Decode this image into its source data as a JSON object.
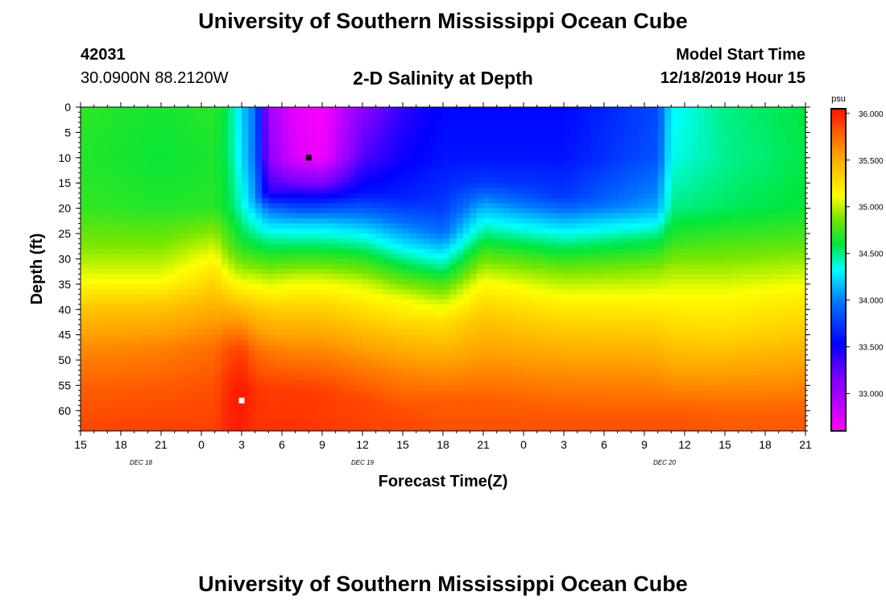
{
  "header": {
    "title": "University of Southern Mississippi Ocean Cube",
    "station_id": "42031",
    "location": "30.0900N 88.2120W",
    "plot_title": "2-D Salinity at Depth",
    "model_start_label": "Model Start Time",
    "model_start_value": "12/18/2019 Hour 15"
  },
  "footer": {
    "title": "University of Southern Mississippi Ocean Cube"
  },
  "chart_data": {
    "type": "heatmap",
    "title": "2-D Salinity at Depth",
    "xlabel": "Forecast Time(Z)",
    "ylabel": "Depth (ft)",
    "x_tick_labels": [
      "15",
      "18",
      "21",
      "0",
      "3",
      "6",
      "9",
      "12",
      "15",
      "18",
      "21",
      "0",
      "3",
      "6",
      "9",
      "12",
      "15",
      "18",
      "21"
    ],
    "x_hours_range": [
      0,
      54
    ],
    "date_labels": [
      {
        "text": "DEC 18",
        "hour": 4.5
      },
      {
        "text": "DEC 19",
        "hour": 21
      },
      {
        "text": "DEC 20",
        "hour": 43.5
      }
    ],
    "ylim": [
      0,
      64
    ],
    "y_ticks": [
      0,
      5,
      10,
      15,
      20,
      25,
      30,
      35,
      40,
      45,
      50,
      55,
      60
    ],
    "colorbar": {
      "unit": "psu",
      "range": [
        32.6,
        36.05
      ],
      "ticks": [
        33.0,
        33.5,
        34.0,
        34.5,
        35.0,
        35.5,
        36.0
      ],
      "tick_labels": [
        "33.000",
        "33.500",
        "34.000",
        "34.500",
        "35.000",
        "35.500",
        "36.000"
      ]
    },
    "markers": [
      {
        "label": "min",
        "hour": 17,
        "depth": 10,
        "color": "#000000"
      },
      {
        "label": "max",
        "hour": 12,
        "depth": 58,
        "color": "#ffffff"
      }
    ],
    "columns": [
      {
        "hour": 0,
        "profile": [
          [
            0,
            34.7
          ],
          [
            10,
            34.68
          ],
          [
            20,
            34.72
          ],
          [
            28,
            34.9
          ],
          [
            34,
            35.1
          ],
          [
            40,
            35.4
          ],
          [
            48,
            35.65
          ],
          [
            56,
            35.8
          ],
          [
            64,
            35.88
          ]
        ]
      },
      {
        "hour": 6,
        "profile": [
          [
            0,
            34.65
          ],
          [
            10,
            34.62
          ],
          [
            20,
            34.68
          ],
          [
            28,
            34.9
          ],
          [
            34,
            35.1
          ],
          [
            40,
            35.42
          ],
          [
            48,
            35.68
          ],
          [
            56,
            35.82
          ],
          [
            64,
            35.9
          ]
        ]
      },
      {
        "hour": 10,
        "profile": [
          [
            0,
            34.7
          ],
          [
            10,
            34.66
          ],
          [
            20,
            34.7
          ],
          [
            28,
            35.05
          ],
          [
            34,
            35.3
          ],
          [
            40,
            35.5
          ],
          [
            48,
            35.75
          ],
          [
            56,
            35.85
          ],
          [
            64,
            35.9
          ]
        ]
      },
      {
        "hour": 11,
        "profile": [
          [
            0,
            34.55
          ],
          [
            10,
            34.55
          ],
          [
            20,
            34.6
          ],
          [
            28,
            34.85
          ],
          [
            34,
            35.15
          ],
          [
            40,
            35.5
          ],
          [
            48,
            35.85
          ],
          [
            56,
            35.98
          ],
          [
            64,
            36.0
          ]
        ]
      },
      {
        "hour": 12,
        "profile": [
          [
            0,
            34.2
          ],
          [
            10,
            34.25
          ],
          [
            20,
            34.4
          ],
          [
            28,
            34.7
          ],
          [
            34,
            35.05
          ],
          [
            40,
            35.45
          ],
          [
            48,
            35.9
          ],
          [
            56,
            36.05
          ],
          [
            64,
            36.02
          ]
        ]
      },
      {
        "hour": 13,
        "profile": [
          [
            0,
            33.95
          ],
          [
            10,
            33.95
          ],
          [
            18,
            34.05
          ],
          [
            22,
            34.3
          ],
          [
            28,
            34.65
          ],
          [
            34,
            35.05
          ],
          [
            40,
            35.4
          ],
          [
            48,
            35.75
          ],
          [
            56,
            35.95
          ],
          [
            64,
            35.95
          ]
        ]
      },
      {
        "hour": 14,
        "profile": [
          [
            0,
            33.0
          ],
          [
            10,
            33.1
          ],
          [
            17,
            33.4
          ],
          [
            20,
            33.95
          ],
          [
            24,
            34.3
          ],
          [
            28,
            34.6
          ],
          [
            34,
            35.0
          ],
          [
            40,
            35.35
          ],
          [
            48,
            35.7
          ],
          [
            56,
            35.92
          ],
          [
            64,
            35.95
          ]
        ]
      },
      {
        "hour": 16,
        "profile": [
          [
            0,
            32.7
          ],
          [
            10,
            32.75
          ],
          [
            15,
            33.2
          ],
          [
            19,
            33.7
          ],
          [
            23,
            34.2
          ],
          [
            28,
            34.6
          ],
          [
            34,
            35.05
          ],
          [
            40,
            35.35
          ],
          [
            48,
            35.65
          ],
          [
            56,
            35.92
          ],
          [
            64,
            35.95
          ]
        ]
      },
      {
        "hour": 18,
        "profile": [
          [
            0,
            32.62
          ],
          [
            10,
            32.65
          ],
          [
            15,
            33.15
          ],
          [
            19,
            33.7
          ],
          [
            23,
            34.2
          ],
          [
            28,
            34.6
          ],
          [
            34,
            35.05
          ],
          [
            40,
            35.35
          ],
          [
            48,
            35.65
          ],
          [
            56,
            35.9
          ],
          [
            64,
            35.92
          ]
        ]
      },
      {
        "hour": 21,
        "profile": [
          [
            0,
            33.1
          ],
          [
            10,
            33.3
          ],
          [
            17,
            33.6
          ],
          [
            21,
            33.95
          ],
          [
            25,
            34.3
          ],
          [
            30,
            34.7
          ],
          [
            35,
            35.05
          ],
          [
            42,
            35.35
          ],
          [
            50,
            35.65
          ],
          [
            58,
            35.88
          ],
          [
            64,
            35.9
          ]
        ]
      },
      {
        "hour": 24,
        "profile": [
          [
            0,
            33.4
          ],
          [
            10,
            33.5
          ],
          [
            18,
            33.65
          ],
          [
            22,
            33.9
          ],
          [
            27,
            34.25
          ],
          [
            32,
            34.65
          ],
          [
            38,
            35.1
          ],
          [
            45,
            35.4
          ],
          [
            52,
            35.65
          ],
          [
            60,
            35.85
          ],
          [
            64,
            35.88
          ]
        ]
      },
      {
        "hour": 27,
        "profile": [
          [
            0,
            33.55
          ],
          [
            10,
            33.6
          ],
          [
            20,
            33.75
          ],
          [
            25,
            33.95
          ],
          [
            30,
            34.35
          ],
          [
            36,
            34.85
          ],
          [
            42,
            35.25
          ],
          [
            50,
            35.55
          ],
          [
            58,
            35.8
          ],
          [
            64,
            35.85
          ]
        ]
      },
      {
        "hour": 30,
        "profile": [
          [
            0,
            33.55
          ],
          [
            10,
            33.6
          ],
          [
            15,
            33.75
          ],
          [
            20,
            34.15
          ],
          [
            25,
            34.5
          ],
          [
            30,
            34.85
          ],
          [
            35,
            35.15
          ],
          [
            42,
            35.4
          ],
          [
            50,
            35.6
          ],
          [
            58,
            35.8
          ],
          [
            64,
            35.85
          ]
        ]
      },
      {
        "hour": 36,
        "profile": [
          [
            0,
            33.55
          ],
          [
            10,
            33.6
          ],
          [
            18,
            33.75
          ],
          [
            22,
            34.1
          ],
          [
            27,
            34.5
          ],
          [
            32,
            34.85
          ],
          [
            38,
            35.15
          ],
          [
            45,
            35.4
          ],
          [
            52,
            35.62
          ],
          [
            60,
            35.8
          ],
          [
            64,
            35.85
          ]
        ]
      },
      {
        "hour": 43,
        "profile": [
          [
            0,
            33.8
          ],
          [
            10,
            33.85
          ],
          [
            20,
            34.1
          ],
          [
            26,
            34.55
          ],
          [
            32,
            34.9
          ],
          [
            38,
            35.15
          ],
          [
            44,
            35.35
          ],
          [
            52,
            35.6
          ],
          [
            60,
            35.8
          ],
          [
            64,
            35.85
          ]
        ]
      },
      {
        "hour": 44,
        "profile": [
          [
            0,
            34.3
          ],
          [
            10,
            34.35
          ],
          [
            20,
            34.5
          ],
          [
            26,
            34.7
          ],
          [
            32,
            34.95
          ],
          [
            38,
            35.15
          ],
          [
            44,
            35.3
          ],
          [
            52,
            35.55
          ],
          [
            60,
            35.8
          ],
          [
            64,
            35.85
          ]
        ]
      },
      {
        "hour": 48,
        "profile": [
          [
            0,
            34.5
          ],
          [
            10,
            34.48
          ],
          [
            20,
            34.55
          ],
          [
            26,
            34.75
          ],
          [
            32,
            34.95
          ],
          [
            38,
            35.15
          ],
          [
            44,
            35.28
          ],
          [
            52,
            35.55
          ],
          [
            60,
            35.78
          ],
          [
            64,
            35.82
          ]
        ]
      },
      {
        "hour": 54,
        "profile": [
          [
            0,
            34.6
          ],
          [
            10,
            34.58
          ],
          [
            20,
            34.62
          ],
          [
            26,
            34.78
          ],
          [
            32,
            35.0
          ],
          [
            38,
            35.2
          ],
          [
            44,
            35.35
          ],
          [
            52,
            35.58
          ],
          [
            60,
            35.78
          ],
          [
            64,
            35.82
          ]
        ]
      }
    ]
  }
}
